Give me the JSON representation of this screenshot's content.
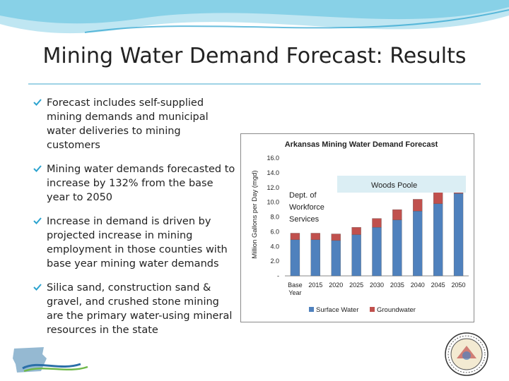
{
  "slide": {
    "title": "Mining Water Demand Forecast: Results",
    "bullets": [
      "Forecast includes self-supplied mining demands and municipal water deliveries to mining customers",
      "Mining water demands forecasted to increase by 132% from the base year to 2050",
      "Increase in demand is driven by projected increase in mining employment in those counties with base year mining water demands",
      "Silica sand, construction sand & gravel, and crushed stone mining are the primary water-using mineral resources in the state"
    ]
  },
  "colors": {
    "surface": "#4f81bd",
    "ground": "#c0504d",
    "callout_woods": "#dbeef4",
    "callout_dept": "#ffffff",
    "accent": "#2ba3cf"
  },
  "icons": {
    "bullet": "check-bullet-icon",
    "logo": "arkansas-water-plan-logo",
    "seal": "arkansas-state-seal-icon"
  },
  "chart_data": {
    "type": "bar",
    "stacked": true,
    "title": "Arkansas Mining Water Demand Forecast",
    "ylabel": "Million Gallons per Day (mgd)",
    "xlabel": "",
    "ylim": [
      0,
      16
    ],
    "yticks": [
      {
        "value": 0,
        "label": "-"
      },
      {
        "value": 2,
        "label": "2.0"
      },
      {
        "value": 4,
        "label": "4.0"
      },
      {
        "value": 6,
        "label": "6.0"
      },
      {
        "value": 8,
        "label": "8.0"
      },
      {
        "value": 10,
        "label": "10.0"
      },
      {
        "value": 12,
        "label": "12.0"
      },
      {
        "value": 14,
        "label": "14.0"
      },
      {
        "value": 16,
        "label": "16.0"
      }
    ],
    "categories": [
      "Base Year",
      "2015",
      "2020",
      "2025",
      "2030",
      "2035",
      "2040",
      "2045",
      "2050"
    ],
    "series": [
      {
        "name": "Surface Water",
        "values": [
          4.9,
          4.9,
          4.8,
          5.6,
          6.6,
          7.6,
          8.8,
          9.8,
          11.2
        ]
      },
      {
        "name": "Groundwater",
        "values": [
          0.9,
          0.9,
          0.9,
          1.0,
          1.2,
          1.4,
          1.6,
          1.8,
          2.0
        ]
      }
    ],
    "legend_position": "bottom",
    "grid": false,
    "annotations": [
      {
        "text": "Woods Poole"
      },
      {
        "text": "Dept. of Workforce Services"
      }
    ]
  }
}
